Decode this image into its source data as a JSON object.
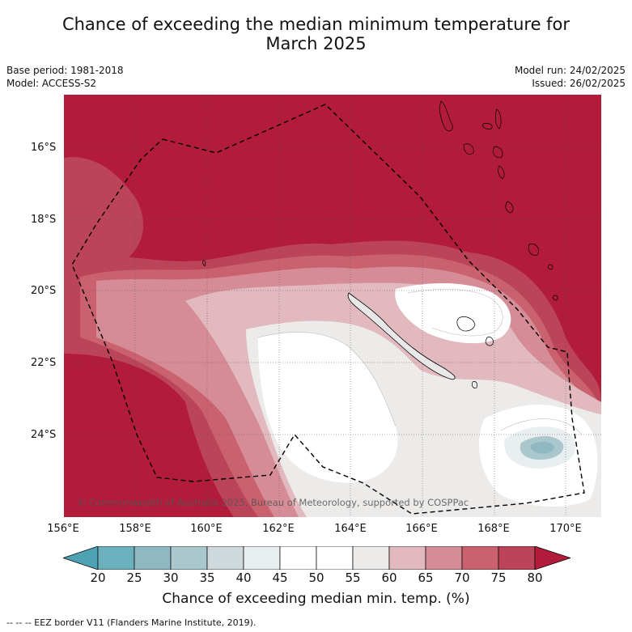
{
  "title": "Chance of exceeding the median minimum temperature for March 2025",
  "title_line1": "Chance of exceeding the median minimum temperature for",
  "title_line2": "March 2025",
  "base_period": "Base period: 1981-2018",
  "model": "Model: ACCESS-S2",
  "model_run": "Model run: 24/02/2025",
  "issued": "Issued: 26/02/2025",
  "latitude_labels": [
    "16°S",
    "18°S",
    "20°S",
    "22°S",
    "24°S"
  ],
  "longitude_labels": [
    "156°E",
    "158°E",
    "160°E",
    "162°E",
    "164°E",
    "166°E",
    "168°E",
    "170°E"
  ],
  "copyright": "© Commonwealth of Australia 2025, Bureau of Meteorology, supported by COSPPac",
  "colorbar": {
    "ticks": [
      "20",
      "25",
      "30",
      "35",
      "40",
      "45",
      "50",
      "55",
      "60",
      "65",
      "70",
      "75",
      "80"
    ],
    "colors": [
      "#4ea3b3",
      "#6cb0bd",
      "#8fb8c2",
      "#a9c7cc",
      "#cfd8db",
      "#e9eff1",
      "#ffffff",
      "#ffffff",
      "#ecebea",
      "#e1b9bf",
      "#d68c96",
      "#c9616f",
      "#bc4458",
      "#b21c3a"
    ],
    "label": "Chance of exceeding median min. temp. (%)"
  },
  "footnote": "--  --  -- EEZ border V11 (Flanders Marine Institute, 2019).",
  "colors": {
    "p80": "#b21c3a",
    "p75": "#bc4458",
    "p70": "#c9616f",
    "p65": "#d68c96",
    "p60": "#e1b9bf",
    "p55": "#ecebea",
    "p50": "#ffffff",
    "p35": "#a9c7cc",
    "p25": "#8fb8c2"
  }
}
